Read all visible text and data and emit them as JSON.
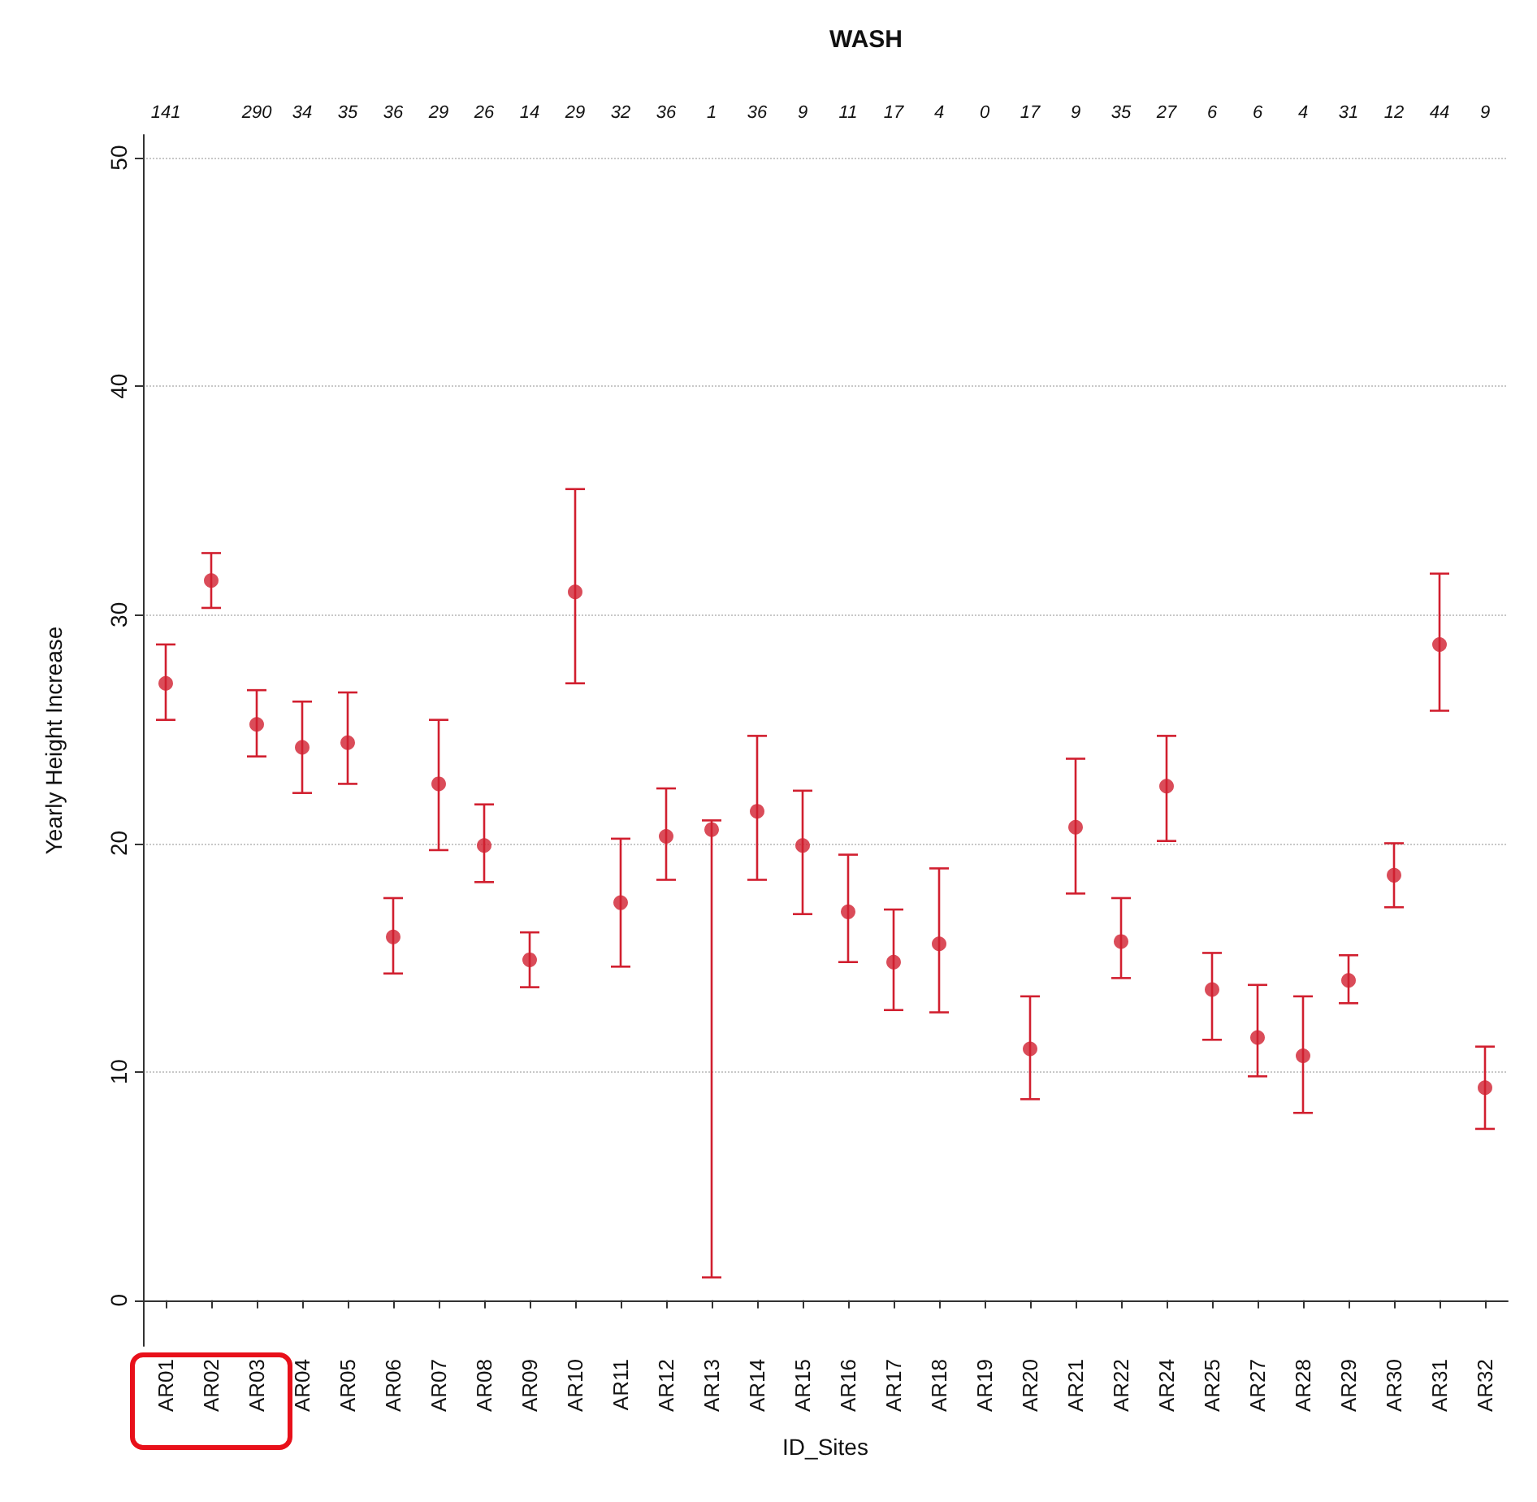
{
  "chart_data": {
    "type": "scatter",
    "title": "WASH",
    "xlabel": "ID_Sites",
    "ylabel": "Yearly Height Increase",
    "categories": [
      "AR01",
      "AR02",
      "AR03",
      "AR04",
      "AR05",
      "AR06",
      "AR07",
      "AR08",
      "AR09",
      "AR10",
      "AR11",
      "AR12",
      "AR13",
      "AR14",
      "AR15",
      "AR16",
      "AR17",
      "AR18",
      "AR19",
      "AR20",
      "AR21",
      "AR22",
      "AR24",
      "AR25",
      "AR27",
      "AR28",
      "AR29",
      "AR30",
      "AR31",
      "AR32"
    ],
    "series": [
      {
        "color": "#d11f2f",
        "values": [
          27.0,
          31.5,
          25.2,
          24.2,
          24.4,
          15.9,
          22.6,
          19.9,
          14.9,
          31.0,
          17.4,
          20.3,
          20.6,
          21.4,
          19.9,
          17.0,
          14.8,
          15.6,
          null,
          11.0,
          20.7,
          15.7,
          22.5,
          13.6,
          11.5,
          10.7,
          14.0,
          18.6,
          28.7,
          9.3
        ],
        "errors": [
          [
            25.4,
            28.7
          ],
          [
            30.3,
            32.7
          ],
          [
            23.8,
            26.7
          ],
          [
            22.2,
            26.2
          ],
          [
            22.6,
            26.6
          ],
          [
            14.3,
            17.6
          ],
          [
            19.7,
            25.4
          ],
          [
            18.3,
            21.7
          ],
          [
            13.7,
            16.1
          ],
          [
            27.0,
            35.5
          ],
          [
            14.6,
            20.2
          ],
          [
            18.4,
            22.4
          ],
          [
            1.0,
            21.0
          ],
          [
            18.4,
            24.7
          ],
          [
            16.9,
            22.3
          ],
          [
            14.8,
            19.5
          ],
          [
            12.7,
            17.1
          ],
          [
            12.6,
            18.9
          ],
          null,
          [
            8.8,
            13.3
          ],
          [
            17.8,
            23.7
          ],
          [
            14.1,
            17.6
          ],
          [
            20.1,
            24.7
          ],
          [
            11.4,
            15.2
          ],
          [
            9.8,
            13.8
          ],
          [
            8.2,
            13.3
          ],
          [
            13.0,
            15.1
          ],
          [
            17.2,
            20.0
          ],
          [
            25.8,
            31.8
          ],
          [
            7.5,
            11.1
          ]
        ]
      }
    ],
    "ylim": [
      -2,
      51
    ],
    "yticks": [
      0,
      10,
      20,
      30,
      40,
      50
    ],
    "grid": "y",
    "marker": "circle",
    "annotations": [
      "141",
      null,
      "290",
      "34",
      "35",
      "36",
      "29",
      "26",
      "14",
      "29",
      "32",
      "36",
      "1",
      "36",
      "9",
      "11",
      "17",
      "4",
      "0",
      "17",
      "9",
      "35",
      "27",
      "6",
      "6",
      "4",
      "31",
      "12",
      "44",
      "9"
    ]
  }
}
